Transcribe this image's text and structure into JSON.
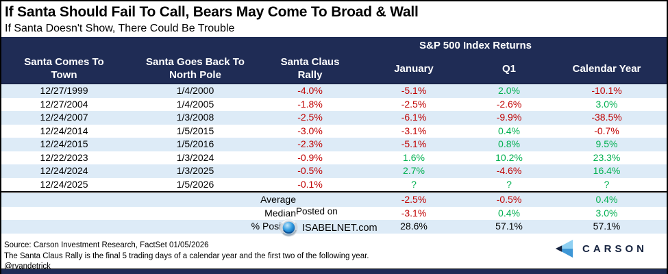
{
  "colors": {
    "navy": "#1f2c55",
    "row_alt": "#ddebf7",
    "negative": "#c00000",
    "positive": "#00b050"
  },
  "header": {
    "title": "If Santa Should Fail To Call, Bears May Come To Broad & Wall",
    "subtitle": "If Santa Doesn't Show, There Could Be Trouble"
  },
  "table": {
    "group_header": "S&P 500 Index Returns",
    "columns": [
      [
        "Santa Comes To",
        "Town"
      ],
      [
        "Santa Goes Back To",
        "North Pole"
      ],
      [
        "Santa Claus",
        "Rally"
      ],
      [
        "January"
      ],
      [
        "Q1"
      ],
      [
        "Calendar Year"
      ]
    ],
    "rows": [
      {
        "santa_comes": "12/27/1999",
        "santa_back": "1/4/2000",
        "values": [
          {
            "t": "-4.0%",
            "c": "neg"
          },
          {
            "t": "-5.1%",
            "c": "neg"
          },
          {
            "t": "2.0%",
            "c": "pos"
          },
          {
            "t": "-10.1%",
            "c": "neg"
          }
        ]
      },
      {
        "santa_comes": "12/27/2004",
        "santa_back": "1/4/2005",
        "values": [
          {
            "t": "-1.8%",
            "c": "neg"
          },
          {
            "t": "-2.5%",
            "c": "neg"
          },
          {
            "t": "-2.6%",
            "c": "neg"
          },
          {
            "t": "3.0%",
            "c": "pos"
          }
        ]
      },
      {
        "santa_comes": "12/24/2007",
        "santa_back": "1/3/2008",
        "values": [
          {
            "t": "-2.5%",
            "c": "neg"
          },
          {
            "t": "-6.1%",
            "c": "neg"
          },
          {
            "t": "-9.9%",
            "c": "neg"
          },
          {
            "t": "-38.5%",
            "c": "neg"
          }
        ]
      },
      {
        "santa_comes": "12/24/2014",
        "santa_back": "1/5/2015",
        "values": [
          {
            "t": "-3.0%",
            "c": "neg"
          },
          {
            "t": "-3.1%",
            "c": "neg"
          },
          {
            "t": "0.4%",
            "c": "pos"
          },
          {
            "t": "-0.7%",
            "c": "neg"
          }
        ]
      },
      {
        "santa_comes": "12/24/2015",
        "santa_back": "1/5/2016",
        "values": [
          {
            "t": "-2.3%",
            "c": "neg"
          },
          {
            "t": "-5.1%",
            "c": "neg"
          },
          {
            "t": "0.8%",
            "c": "pos"
          },
          {
            "t": "9.5%",
            "c": "pos"
          }
        ]
      },
      {
        "santa_comes": "12/22/2023",
        "santa_back": "1/3/2024",
        "values": [
          {
            "t": "-0.9%",
            "c": "neg"
          },
          {
            "t": "1.6%",
            "c": "pos"
          },
          {
            "t": "10.2%",
            "c": "pos"
          },
          {
            "t": "23.3%",
            "c": "pos"
          }
        ]
      },
      {
        "santa_comes": "12/24/2024",
        "santa_back": "1/3/2025",
        "values": [
          {
            "t": "-0.5%",
            "c": "neg"
          },
          {
            "t": "2.7%",
            "c": "pos"
          },
          {
            "t": "-4.6%",
            "c": "neg"
          },
          {
            "t": "16.4%",
            "c": "pos"
          }
        ]
      },
      {
        "santa_comes": "12/24/2025",
        "santa_back": "1/5/2026",
        "values": [
          {
            "t": "-0.1%",
            "c": "neg"
          },
          {
            "t": "?",
            "c": "pos"
          },
          {
            "t": "?",
            "c": "pos"
          },
          {
            "t": "?",
            "c": "pos"
          }
        ]
      }
    ],
    "summary": [
      {
        "label": "Average",
        "values": [
          {
            "t": "-2.5%",
            "c": "neg"
          },
          {
            "t": "-0.5%",
            "c": "neg"
          },
          {
            "t": "0.4%",
            "c": "pos"
          }
        ]
      },
      {
        "label": "Median",
        "values": [
          {
            "t": "-3.1%",
            "c": "neg"
          },
          {
            "t": "0.4%",
            "c": "pos"
          },
          {
            "t": "3.0%",
            "c": "pos"
          }
        ]
      },
      {
        "label": "% Positive",
        "values": [
          {
            "t": "28.6%",
            "c": "plain"
          },
          {
            "t": "57.1%",
            "c": "plain"
          },
          {
            "t": "57.1%",
            "c": "plain"
          }
        ]
      }
    ]
  },
  "watermark": {
    "line1": "Posted on",
    "line2": "ISABELNET.com"
  },
  "footer": {
    "source": "Source: Carson Investment Research, FactSet 01/05/2026",
    "definition": "The Santa Claus Rally is the final 5 trading days of a calendar year and the first two of the following year.",
    "handle": "@ryandetrick",
    "brand": "CARSON"
  },
  "chart_data": {
    "type": "table",
    "title": "If Santa Should Fail To Call, Bears May Come To Broad & Wall",
    "subtitle": "If Santa Doesn't Show, There Could Be Trouble",
    "group_header": "S&P 500 Index Returns (January, Q1, Calendar Year)",
    "columns": [
      "Santa Comes To Town",
      "Santa Goes Back To North Pole",
      "Santa Claus Rally %",
      "January %",
      "Q1 %",
      "Calendar Year %"
    ],
    "rows": [
      [
        "12/27/1999",
        "1/4/2000",
        -4.0,
        -5.1,
        2.0,
        -10.1
      ],
      [
        "12/27/2004",
        "1/4/2005",
        -1.8,
        -2.5,
        -2.6,
        3.0
      ],
      [
        "12/24/2007",
        "1/3/2008",
        -2.5,
        -6.1,
        -9.9,
        -38.5
      ],
      [
        "12/24/2014",
        "1/5/2015",
        -3.0,
        -3.1,
        0.4,
        -0.7
      ],
      [
        "12/24/2015",
        "1/5/2016",
        -2.3,
        -5.1,
        0.8,
        9.5
      ],
      [
        "12/22/2023",
        "1/3/2024",
        -0.9,
        1.6,
        10.2,
        23.3
      ],
      [
        "12/24/2024",
        "1/3/2025",
        -0.5,
        2.7,
        -4.6,
        16.4
      ],
      [
        "12/24/2025",
        "1/5/2026",
        -0.1,
        "?",
        "?",
        "?"
      ]
    ],
    "summary": {
      "Average": {
        "January": -2.5,
        "Q1": -0.5,
        "Calendar Year": 0.4
      },
      "Median": {
        "January": -3.1,
        "Q1": 0.4,
        "Calendar Year": 3.0
      },
      "% Positive": {
        "January": 28.6,
        "Q1": 57.1,
        "Calendar Year": 57.1
      }
    }
  }
}
